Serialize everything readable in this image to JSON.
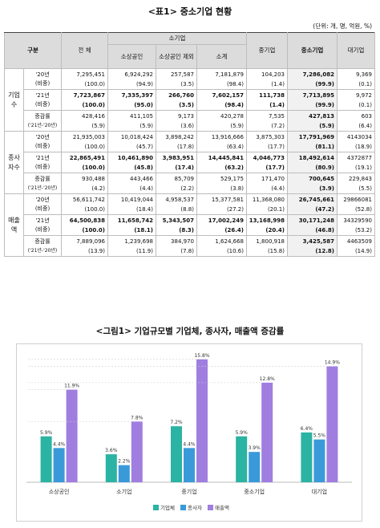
{
  "table": {
    "title": "<표1> 중소기업 현황",
    "unit": "(단위: 개, 명, 억원, %)",
    "headers": {
      "gubun": "구분",
      "total": "전 체",
      "small_biz": "소기업",
      "small_owner": "소상공인",
      "small_excl": "소상공인 제외",
      "subtotal": "소계",
      "medium": "중기업",
      "sme": "중소기업",
      "large": "대기업"
    },
    "groups": [
      {
        "name": "기업 수",
        "rows": [
          {
            "label": "'20년",
            "label2": "(비중)",
            "values": [
              "7,295,451",
              "6,924,292",
              "257,587",
              "7,181,879",
              "104,203",
              "7,286,082",
              "9,369"
            ],
            "shares": [
              "(100.0)",
              "(94.9)",
              "(3.5)",
              "(98.4)",
              "(1.4)",
              "(99.9)",
              "(0.1)"
            ]
          },
          {
            "label": "'21년",
            "label2": "(비중)",
            "values": [
              "7,723,867",
              "7,335,397",
              "266,760",
              "7,602,157",
              "111,738",
              "7,713,895",
              "9,972"
            ],
            "shares": [
              "(100.0)",
              "(95.0)",
              "(3.5)",
              "(98.4)",
              "(1.4)",
              "(99.9)",
              "(0.1)"
            ]
          },
          {
            "label": "증감률",
            "label2": "('21년-'20년)",
            "values": [
              "428,416",
              "411,105",
              "9,173",
              "420,278",
              "7,535",
              "427,813",
              "603"
            ],
            "shares": [
              "(5.9)",
              "(5.9)",
              "(3.6)",
              "(5.9)",
              "(7.2)",
              "(5.9)",
              "(6.4)"
            ]
          }
        ]
      },
      {
        "name": "종사 자수",
        "rows": [
          {
            "label": "'20년",
            "label2": "(비중)",
            "values": [
              "21,935,003",
              "10,018,424",
              "3,898,242",
              "13,916,666",
              "3,875,303",
              "17,791,969",
              "4143034"
            ],
            "shares": [
              "(100.0)",
              "(45.7)",
              "(17.8)",
              "(63.4)",
              "(17.7)",
              "(81.1)",
              "(18.9)"
            ]
          },
          {
            "label": "'21년",
            "label2": "(비중)",
            "values": [
              "22,865,491",
              "10,461,890",
              "3,983,951",
              "14,445,841",
              "4,046,773",
              "18,492,614",
              "4372877"
            ],
            "shares": [
              "(100.0)",
              "(45.8)",
              "(17.4)",
              "(63.2)",
              "(17.7)",
              "(80.9)",
              "(19.1)"
            ]
          },
          {
            "label": "증감률",
            "label2": "('21년-'20년)",
            "values": [
              "930,488",
              "443,466",
              "85,709",
              "529,175",
              "171,470",
              "700,645",
              "229,843"
            ],
            "shares": [
              "(4.2)",
              "(4.4)",
              "(2.2)",
              "(3.8)",
              "(4.4)",
              "(3.9)",
              "(5.5)"
            ]
          }
        ]
      },
      {
        "name": "매출 액",
        "rows": [
          {
            "label": "'20년",
            "label2": "(비중)",
            "values": [
              "56,611,742",
              "10,419,044",
              "4,958,537",
              "15,377,581",
              "11,368,080",
              "26,745,661",
              "29866081"
            ],
            "shares": [
              "(100.0)",
              "(18.4)",
              "(8.8)",
              "(27.2)",
              "(20.1)",
              "(47.2)",
              "(52.8)"
            ]
          },
          {
            "label": "'21년",
            "label2": "(비중)",
            "values": [
              "64,500,838",
              "11,658,742",
              "5,343,507",
              "17,002,249",
              "13,168,998",
              "30,171,248",
              "34329590"
            ],
            "shares": [
              "(100.0)",
              "(18.1)",
              "(8.3)",
              "(26.4)",
              "(20.4)",
              "(46.8)",
              "(53.2)"
            ]
          },
          {
            "label": "증감률",
            "label2": "('21년-'20년)",
            "values": [
              "7,889,096",
              "1,239,698",
              "384,970",
              "1,624,668",
              "1,800,918",
              "3,425,587",
              "4463509"
            ],
            "shares": [
              "(13.9)",
              "(11.9)",
              "(7.8)",
              "(10.6)",
              "(15.8)",
              "(12.8)",
              "(14.9)"
            ]
          }
        ]
      }
    ]
  },
  "chart_title": "<그림1> 기업규모별 기업체, 종사자, 매출액 증감률",
  "chart_data": {
    "type": "bar",
    "categories": [
      "소상공인",
      "소기업",
      "중기업",
      "중소기업",
      "대기업"
    ],
    "series": [
      {
        "name": "기업체",
        "color": "#2bb3a3",
        "values": [
          5.9,
          3.6,
          7.2,
          5.9,
          6.4
        ],
        "labels": [
          "5.9%",
          "3.6%",
          "7.2%",
          "5.9%",
          "6.4%"
        ]
      },
      {
        "name": "종사자",
        "color": "#3a9ad9",
        "values": [
          4.4,
          2.2,
          4.4,
          3.9,
          5.5
        ],
        "labels": [
          "4.4%",
          "2.2%",
          "4.4%",
          "3.9%",
          "5.5%"
        ]
      },
      {
        "name": "매출액",
        "color": "#a07ee0",
        "values": [
          11.9,
          7.8,
          15.8,
          12.8,
          14.9
        ],
        "labels": [
          "11.9%",
          "7.8%",
          "15.8%",
          "12.8%",
          "14.9%"
        ]
      }
    ],
    "ylim": [
      0,
      16.5
    ],
    "legend_position": "bottom"
  }
}
